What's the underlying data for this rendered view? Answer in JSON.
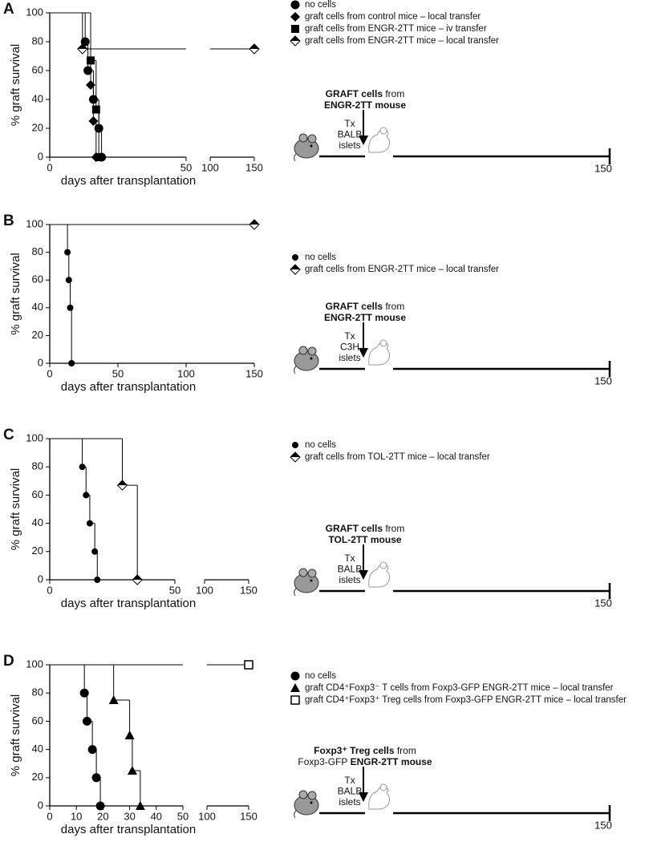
{
  "chart_data": [
    {
      "panel": "A",
      "type": "step",
      "ylabel": "% graft survival",
      "xlabel": "days after transplantation",
      "xlim": [
        0,
        150
      ],
      "x_break": [
        50,
        100
      ],
      "xticks": [
        0,
        50,
        100,
        150
      ],
      "ylim": [
        0,
        100
      ],
      "yticks": [
        0,
        20,
        40,
        60,
        80,
        100
      ],
      "series": [
        {
          "name": "no cells",
          "marker": "circle",
          "color": "#000000",
          "x": [
            13,
            14,
            16,
            18,
            19
          ],
          "values": [
            80,
            60,
            40,
            20,
            0
          ]
        },
        {
          "name": "graft cells from control mice – local transfer",
          "marker": "diamond",
          "color": "#000000",
          "x": [
            15,
            16,
            17
          ],
          "values": [
            50,
            25,
            0
          ]
        },
        {
          "name": "graft cells from ENGR-2TT mice – iv transfer",
          "marker": "square",
          "color": "#000000",
          "x": [
            15,
            17,
            18
          ],
          "values": [
            67,
            33,
            0
          ]
        },
        {
          "name": "graft cells from ENGR-2TT mice – local transfer",
          "marker": "half-diamond",
          "color": "#000000",
          "x": [
            12,
            150
          ],
          "values": [
            75,
            75
          ]
        }
      ],
      "diagram": {
        "graft_lines": [
          [
            {
              "text": "GRAFT cells",
              "bold": true
            },
            {
              "text": " from",
              "bold": false
            }
          ],
          [
            {
              "text": "ENGR-2TT mouse",
              "bold": true
            }
          ]
        ],
        "tx_lines": [
          "Tx",
          "BALB",
          "islets"
        ],
        "end_label": "150"
      }
    },
    {
      "panel": "B",
      "type": "step",
      "ylabel": "% graft survival",
      "xlabel": "days after transplantation",
      "xlim": [
        0,
        150
      ],
      "xticks": [
        0,
        50,
        100,
        150
      ],
      "ylim": [
        0,
        100
      ],
      "yticks": [
        0,
        20,
        40,
        60,
        80,
        100
      ],
      "series": [
        {
          "name": "no cells",
          "marker": "small-circle",
          "color": "#000000",
          "x": [
            13,
            14,
            15,
            16
          ],
          "values": [
            80,
            60,
            40,
            0
          ]
        },
        {
          "name": "graft cells from ENGR-2TT mice – local transfer",
          "marker": "half-diamond",
          "color": "#000000",
          "x": [
            150
          ],
          "values": [
            100
          ]
        }
      ],
      "diagram": {
        "graft_lines": [
          [
            {
              "text": "GRAFT cells",
              "bold": true
            },
            {
              "text": " from",
              "bold": false
            }
          ],
          [
            {
              "text": "ENGR-2TT mouse",
              "bold": true
            }
          ]
        ],
        "tx_lines": [
          "Tx",
          "C3H",
          "islets"
        ],
        "end_label": "150"
      }
    },
    {
      "panel": "C",
      "type": "step",
      "ylabel": "% graft survival",
      "xlabel": "days after transplantation",
      "xlim": [
        0,
        150
      ],
      "x_break": [
        50,
        100
      ],
      "xticks": [
        0,
        50,
        100,
        150
      ],
      "ylim": [
        0,
        100
      ],
      "yticks": [
        0,
        20,
        40,
        60,
        80,
        100
      ],
      "series": [
        {
          "name": "no cells",
          "marker": "small-circle",
          "color": "#000000",
          "x": [
            13,
            14.5,
            16,
            18,
            19
          ],
          "values": [
            80,
            60,
            40,
            20,
            0
          ]
        },
        {
          "name": "graft cells from TOL-2TT mice – local transfer",
          "marker": "half-diamond",
          "color": "#000000",
          "x": [
            29,
            35
          ],
          "values": [
            67,
            0
          ]
        }
      ],
      "diagram": {
        "graft_lines": [
          [
            {
              "text": "GRAFT cells",
              "bold": true
            },
            {
              "text": " from",
              "bold": false
            }
          ],
          [
            {
              "text": "TOL-2TT mouse",
              "bold": true
            }
          ]
        ],
        "tx_lines": [
          "Tx",
          "BALB",
          "islets"
        ],
        "end_label": "150"
      }
    },
    {
      "panel": "D",
      "type": "step",
      "ylabel": "% graft survival",
      "xlabel": "days after transplantation",
      "xlim": [
        0,
        150
      ],
      "x_break": [
        50,
        100
      ],
      "xticks": [
        0,
        10,
        20,
        30,
        40,
        50,
        100,
        150
      ],
      "ylim": [
        0,
        100
      ],
      "yticks": [
        0,
        20,
        40,
        60,
        80,
        100
      ],
      "series": [
        {
          "name": "no cells",
          "marker": "circle",
          "color": "#000000",
          "x": [
            13,
            14,
            16,
            17.5,
            19
          ],
          "values": [
            80,
            60,
            40,
            20,
            0
          ]
        },
        {
          "name": "graft CD4⁺Foxp3⁻ T cells from Foxp3-GFP ENGR-2TT mice – local transfer",
          "marker": "triangle",
          "color": "#000000",
          "x": [
            24,
            30,
            31,
            34
          ],
          "values": [
            75,
            50,
            25,
            0
          ]
        },
        {
          "name": "graft CD4⁺Foxp3⁺ Treg cells from Foxp3-GFP ENGR-2TT mice – local transfer",
          "marker": "open-square",
          "color": "#000000",
          "x": [
            150
          ],
          "values": [
            100
          ]
        }
      ],
      "diagram": {
        "graft_lines": [
          [
            {
              "text": "Foxp3⁺ Treg cells",
              "bold": true
            },
            {
              "text": " from",
              "bold": false
            }
          ],
          [
            {
              "text": "Foxp3-GFP ",
              "bold": false
            },
            {
              "text": "ENGR-2TT mouse",
              "bold": true
            }
          ]
        ],
        "tx_lines": [
          "Tx",
          "BALB",
          "islets"
        ],
        "end_label": "150"
      }
    }
  ]
}
